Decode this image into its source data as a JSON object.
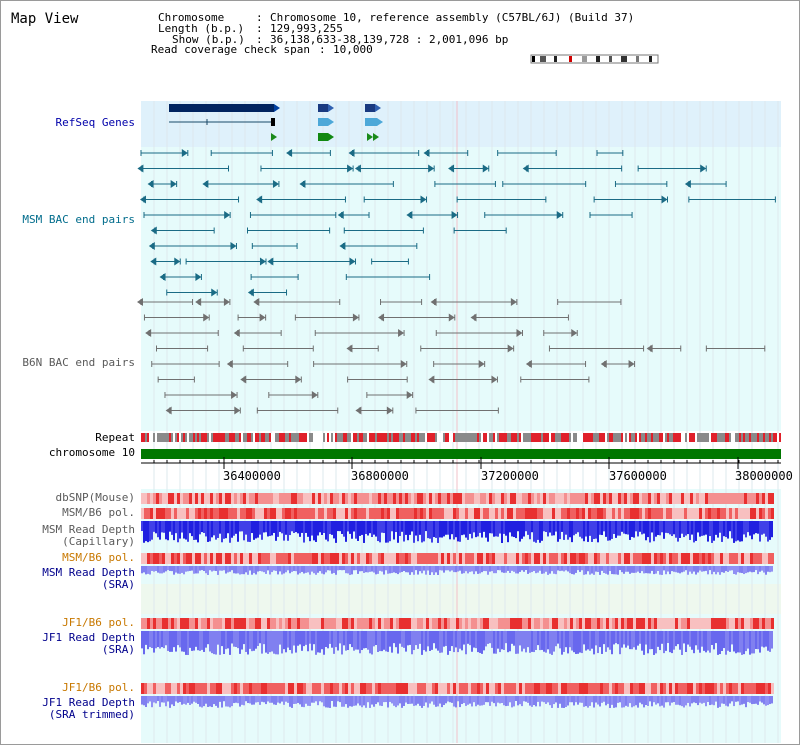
{
  "page": {
    "title": "Map View"
  },
  "info": {
    "chromosome_label": "Chromosome",
    "chromosome_value": "Chromosome 10, reference assembly (C57BL/6J) (Build 37)",
    "length_label": "Length (b.p.)",
    "length_value": "129,993,255",
    "show_label": "Show (b.p.)",
    "show_value": "36,138,633-38,139,728 : 2,001,096 bp",
    "span_label": "Read coverage check span",
    "span_value": "10,000"
  },
  "tracks": {
    "refseq": "RefSeq Genes",
    "msm_bac": "MSM BAC end pairs",
    "b6n_bac": "B6N BAC end pairs",
    "repeat": "Repeat",
    "chromosome": "chromosome 10",
    "dbsnp": "dbSNP(Mouse)",
    "msm_b6_pol_1": "MSM/B6 pol.",
    "msm_read_depth_cap_1": "MSM Read Depth",
    "msm_read_depth_cap_2": "(Capillary)",
    "msm_b6_pol_2": "MSM/B6 pol.",
    "msm_read_depth_sra_1": "MSM Read Depth",
    "msm_read_depth_sra_2": "(SRA)",
    "jf1_b6_pol_1": "JF1/B6 pol.",
    "jf1_read_depth_1": "JF1 Read Depth",
    "jf1_read_depth_2": "(SRA)",
    "jf1_b6_pol_2": "JF1/B6 pol.",
    "jf1_read_depth_trim_1": "JF1 Read Depth",
    "jf1_read_depth_trim_2": "(SRA trimmed)"
  },
  "ruler": {
    "ticks": [
      "36400000",
      "36800000",
      "37200000",
      "37600000",
      "38000000"
    ]
  },
  "colors": {
    "refseq_bg": "#dff1fb",
    "track_bg": "#e6fbfb",
    "msm_line": "#1a6b85",
    "b6n_line": "#707070",
    "chromosome_bar": "#007700",
    "repeat_red": "#e0202a",
    "repeat_gray": "#8a8a8a",
    "depth_blue": "#2020e0",
    "depth_light": "#8080f0",
    "pol_red": "#f06060"
  }
}
